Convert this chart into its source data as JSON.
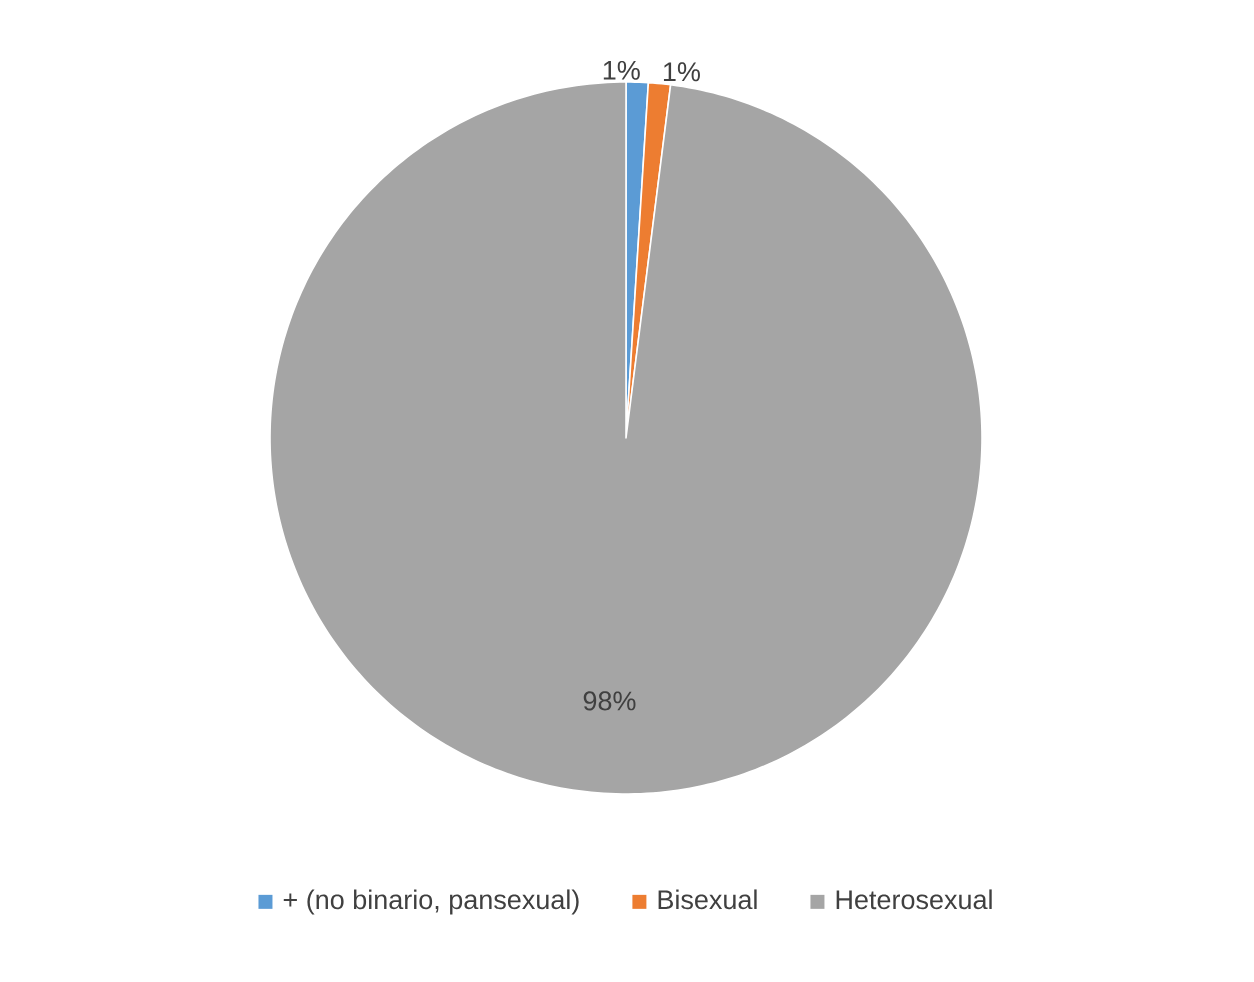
{
  "chart_data": {
    "type": "pie",
    "categories": [
      "+ (no binario, pansexual)",
      "Bisexual",
      "Heterosexual"
    ],
    "values": [
      1,
      1,
      98
    ],
    "colors": [
      "#5b9bd5",
      "#ed7d31",
      "#a5a5a5"
    ],
    "value_labels": [
      "1%",
      "1%",
      "98%"
    ],
    "legend": "bottom"
  }
}
